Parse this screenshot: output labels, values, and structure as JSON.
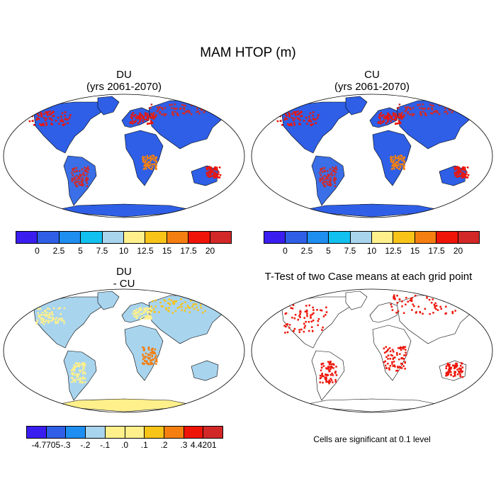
{
  "title": "MAM HTOP (m)",
  "panels": [
    {
      "id": "du",
      "title_line1": "DU",
      "title_line2": "(yrs 2061-2070)",
      "kind": "field"
    },
    {
      "id": "cu",
      "title_line1": "CU",
      "title_line2": "(yrs 2061-2070)",
      "kind": "field"
    },
    {
      "id": "diff",
      "title_line1": "DU",
      "title_line2": "- CU",
      "kind": "difference"
    },
    {
      "id": "ttest",
      "title_line1": "T-Test of two Case means at each grid point",
      "title_line2": "",
      "kind": "significance"
    }
  ],
  "colorbar_top": {
    "colors": [
      "#3a1ef0",
      "#2e5fe6",
      "#1e8ef0",
      "#12c0f0",
      "#a8d4ee",
      "#fff08c",
      "#f8c418",
      "#f47f10",
      "#ee1408",
      "#d22828"
    ],
    "labels": [
      "0",
      "2.5",
      "5",
      "7.5",
      "10",
      "12.5",
      "15",
      "17.5",
      "20"
    ]
  },
  "colorbar_diff": {
    "colors": [
      "#3a1ef0",
      "#2e5fe6",
      "#1e8ef0",
      "#a8d4ee",
      "#fff08c",
      "#fff08c",
      "#f8c418",
      "#f47f10",
      "#ee1408",
      "#d22828"
    ],
    "labels": [
      "-4.7705",
      "-.3",
      "-.2",
      "-.1",
      ".0",
      ".1",
      ".2",
      ".3",
      "4.4201"
    ]
  },
  "significance_note": "Cells are significant at 0.1 level",
  "colors": {
    "ocean": "#ffffff",
    "field_base": "#2e5fe6",
    "field_high": "#d22828",
    "diff_base": "#a8d4ee",
    "diff_pale": "#fff08c",
    "significant": "#ee1408"
  }
}
